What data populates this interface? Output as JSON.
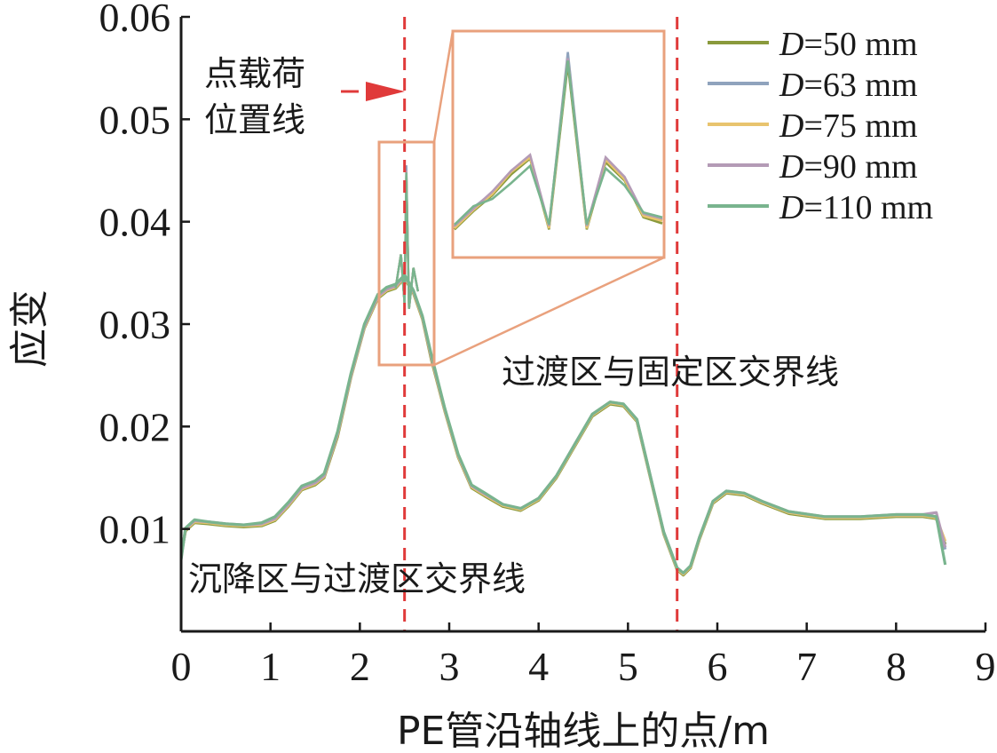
{
  "chart_data": {
    "type": "line",
    "xlabel": "PE管沿轴线上的点/m",
    "ylabel": "应变",
    "xlim": [
      0,
      9
    ],
    "ylim": [
      0,
      0.06
    ],
    "xticks": [
      0,
      1,
      2,
      3,
      4,
      5,
      6,
      7,
      8,
      9
    ],
    "yticks": [
      0.01,
      0.02,
      0.03,
      0.04,
      0.05,
      0.06
    ],
    "grid": false,
    "legend_position": "top-right",
    "series": [
      {
        "name": "D=50 mm",
        "legend_var": "D",
        "legend_rest": "=50 mm",
        "color": "#8a9a3c",
        "x": [
          0,
          0.05,
          0.15,
          0.3,
          0.5,
          0.7,
          0.9,
          1.05,
          1.2,
          1.35,
          1.5,
          1.6,
          1.75,
          1.9,
          2.05,
          2.2,
          2.3,
          2.4,
          2.5,
          2.6,
          2.7,
          2.8,
          2.95,
          3.1,
          3.25,
          3.4,
          3.6,
          3.8,
          4.0,
          4.2,
          4.4,
          4.6,
          4.8,
          4.95,
          5.1,
          5.25,
          5.4,
          5.55,
          5.62,
          5.7,
          5.8,
          5.95,
          6.1,
          6.3,
          6.5,
          6.8,
          7.2,
          7.6,
          8.0,
          8.3,
          8.45,
          8.55
        ],
        "y": [
          0.0075,
          0.0098,
          0.0106,
          0.0105,
          0.0103,
          0.0102,
          0.0103,
          0.0108,
          0.0122,
          0.0138,
          0.0143,
          0.015,
          0.019,
          0.0248,
          0.0296,
          0.0325,
          0.0332,
          0.0335,
          0.0345,
          0.033,
          0.0305,
          0.0265,
          0.0215,
          0.017,
          0.014,
          0.0132,
          0.0122,
          0.0118,
          0.0128,
          0.015,
          0.018,
          0.021,
          0.0222,
          0.022,
          0.0205,
          0.015,
          0.0095,
          0.006,
          0.0055,
          0.0062,
          0.009,
          0.0125,
          0.0135,
          0.0133,
          0.0125,
          0.0115,
          0.011,
          0.011,
          0.0112,
          0.0112,
          0.011,
          0.0085
        ]
      },
      {
        "name": "D=63 mm",
        "legend_var": "D",
        "legend_rest": "=63 mm",
        "color": "#8fa3bd",
        "x": [
          0,
          0.05,
          0.15,
          0.3,
          0.5,
          0.7,
          0.9,
          1.05,
          1.2,
          1.35,
          1.5,
          1.6,
          1.75,
          1.9,
          2.05,
          2.2,
          2.3,
          2.4,
          2.5,
          2.6,
          2.7,
          2.8,
          2.95,
          3.1,
          3.25,
          3.4,
          3.6,
          3.8,
          4.0,
          4.2,
          4.4,
          4.6,
          4.8,
          4.95,
          5.1,
          5.25,
          5.4,
          5.55,
          5.62,
          5.7,
          5.8,
          5.95,
          6.1,
          6.3,
          6.5,
          6.8,
          7.2,
          7.6,
          8.0,
          8.3,
          8.45,
          8.55
        ],
        "y": [
          0.0072,
          0.01,
          0.0108,
          0.0106,
          0.0104,
          0.0103,
          0.0104,
          0.011,
          0.0124,
          0.014,
          0.0145,
          0.0152,
          0.0193,
          0.025,
          0.0298,
          0.0327,
          0.0334,
          0.0337,
          0.0347,
          0.0332,
          0.0307,
          0.0268,
          0.0217,
          0.0172,
          0.0142,
          0.0134,
          0.0123,
          0.0119,
          0.0129,
          0.0151,
          0.0181,
          0.0211,
          0.0223,
          0.0221,
          0.0206,
          0.0151,
          0.0096,
          0.0061,
          0.0056,
          0.0063,
          0.0091,
          0.0126,
          0.0136,
          0.0134,
          0.0126,
          0.0116,
          0.0111,
          0.0111,
          0.0113,
          0.0113,
          0.0111,
          0.008
        ]
      },
      {
        "name": "D=75 mm",
        "legend_var": "D",
        "legend_rest": "=75 mm",
        "color": "#e8c46e",
        "x": [
          0,
          0.05,
          0.15,
          0.3,
          0.5,
          0.7,
          0.9,
          1.05,
          1.2,
          1.35,
          1.5,
          1.6,
          1.75,
          1.9,
          2.05,
          2.2,
          2.3,
          2.4,
          2.5,
          2.6,
          2.7,
          2.8,
          2.95,
          3.1,
          3.25,
          3.4,
          3.6,
          3.8,
          4.0,
          4.2,
          4.4,
          4.6,
          4.8,
          4.95,
          5.1,
          5.25,
          5.4,
          5.55,
          5.62,
          5.7,
          5.8,
          5.95,
          6.1,
          6.3,
          6.5,
          6.8,
          7.2,
          7.6,
          8.0,
          8.3,
          8.45,
          8.55
        ],
        "y": [
          0.0074,
          0.0099,
          0.0107,
          0.0106,
          0.0104,
          0.0103,
          0.0104,
          0.0109,
          0.0123,
          0.0139,
          0.0144,
          0.0151,
          0.0192,
          0.0249,
          0.0297,
          0.0326,
          0.0333,
          0.0336,
          0.0346,
          0.0331,
          0.0306,
          0.0267,
          0.0216,
          0.0171,
          0.0141,
          0.0133,
          0.0123,
          0.0119,
          0.0129,
          0.0151,
          0.0181,
          0.0211,
          0.0223,
          0.0221,
          0.0206,
          0.0151,
          0.0096,
          0.0061,
          0.0056,
          0.0063,
          0.0091,
          0.0126,
          0.0136,
          0.0134,
          0.0126,
          0.0116,
          0.0111,
          0.0111,
          0.0113,
          0.0113,
          0.0111,
          0.0088
        ]
      },
      {
        "name": "D=90 mm",
        "legend_var": "D",
        "legend_rest": "=90 mm",
        "color": "#b49bb6",
        "x": [
          0,
          0.05,
          0.15,
          0.3,
          0.5,
          0.7,
          0.9,
          1.05,
          1.2,
          1.35,
          1.5,
          1.6,
          1.75,
          1.9,
          2.05,
          2.2,
          2.3,
          2.4,
          2.5,
          2.6,
          2.7,
          2.8,
          2.95,
          3.1,
          3.25,
          3.4,
          3.6,
          3.8,
          4.0,
          4.2,
          4.4,
          4.6,
          4.8,
          4.95,
          5.1,
          5.25,
          5.4,
          5.55,
          5.62,
          5.7,
          5.8,
          5.95,
          6.1,
          6.3,
          6.5,
          6.8,
          7.2,
          7.6,
          8.0,
          8.3,
          8.45,
          8.55
        ],
        "y": [
          0.0073,
          0.01,
          0.0108,
          0.0107,
          0.0105,
          0.0104,
          0.0105,
          0.011,
          0.0124,
          0.014,
          0.0145,
          0.0152,
          0.0193,
          0.025,
          0.0298,
          0.0327,
          0.0334,
          0.0337,
          0.0347,
          0.0332,
          0.0307,
          0.0268,
          0.0217,
          0.0172,
          0.0142,
          0.0134,
          0.0124,
          0.012,
          0.013,
          0.0152,
          0.0182,
          0.0212,
          0.0224,
          0.0222,
          0.0207,
          0.0152,
          0.0097,
          0.0062,
          0.0057,
          0.0064,
          0.0092,
          0.0127,
          0.0137,
          0.0135,
          0.0127,
          0.0117,
          0.0112,
          0.0112,
          0.0114,
          0.0114,
          0.0116,
          0.0082
        ]
      },
      {
        "name": "D=110 mm",
        "legend_var": "D",
        "legend_rest": "=110 mm",
        "color": "#79b48e",
        "x": [
          0,
          0.05,
          0.15,
          0.3,
          0.5,
          0.7,
          0.9,
          1.05,
          1.2,
          1.35,
          1.5,
          1.6,
          1.75,
          1.9,
          2.05,
          2.2,
          2.3,
          2.4,
          2.5,
          2.6,
          2.7,
          2.8,
          2.95,
          3.1,
          3.25,
          3.4,
          3.6,
          3.8,
          4.0,
          4.2,
          4.4,
          4.6,
          4.8,
          4.95,
          5.1,
          5.25,
          5.4,
          5.55,
          5.62,
          5.7,
          5.8,
          5.95,
          6.1,
          6.3,
          6.5,
          6.8,
          7.2,
          7.6,
          8.0,
          8.3,
          8.45,
          8.55
        ],
        "y": [
          0.007,
          0.0101,
          0.0109,
          0.0107,
          0.0105,
          0.0104,
          0.0106,
          0.0112,
          0.0126,
          0.0142,
          0.0147,
          0.0154,
          0.0195,
          0.0252,
          0.03,
          0.0329,
          0.0336,
          0.0339,
          0.0348,
          0.0333,
          0.0308,
          0.027,
          0.0218,
          0.0173,
          0.0143,
          0.0135,
          0.0124,
          0.012,
          0.013,
          0.0152,
          0.0182,
          0.0212,
          0.0224,
          0.0222,
          0.0207,
          0.0152,
          0.0097,
          0.0062,
          0.0057,
          0.0064,
          0.0092,
          0.0127,
          0.0137,
          0.0135,
          0.0127,
          0.0117,
          0.0112,
          0.0112,
          0.0114,
          0.0114,
          0.0112,
          0.0065
        ]
      }
    ],
    "reference_lines": [
      {
        "x": 2.5,
        "color": "#e03a3a",
        "style": "dashed"
      },
      {
        "x": 5.55,
        "color": "#e03a3a",
        "style": "dashed"
      }
    ],
    "annotations": {
      "load_line_1": "点载荷",
      "load_line_2": "位置线",
      "transition_fixed": "过渡区与固定区交界线",
      "settlement_transition": "沉降区与过渡区交界线"
    },
    "inset": {
      "zoom_region_x": [
        2.22,
        2.83
      ],
      "zoom_region_y": [
        0.026,
        0.0475
      ],
      "border_color": "#e9a17d",
      "peak_values": {
        "D=50 mm": 0.0445,
        "D=63 mm": 0.0455,
        "D=75 mm": 0.045,
        "D=90 mm": 0.045,
        "D=110 mm": 0.0448
      },
      "inset_profiles": [
        [
          0.031,
          0.0325,
          0.0338,
          0.0355,
          0.0368,
          0.031,
          0.0445,
          0.031,
          0.0365,
          0.035,
          0.032,
          0.0315
        ],
        [
          0.0312,
          0.0328,
          0.034,
          0.0358,
          0.037,
          0.0312,
          0.0455,
          0.0312,
          0.0368,
          0.0352,
          0.0322,
          0.0318
        ],
        [
          0.0311,
          0.0326,
          0.0339,
          0.0357,
          0.0369,
          0.0311,
          0.045,
          0.0311,
          0.0367,
          0.0351,
          0.0321,
          0.0317
        ],
        [
          0.0313,
          0.0327,
          0.0341,
          0.0358,
          0.0371,
          0.0313,
          0.045,
          0.0313,
          0.0369,
          0.0353,
          0.0323,
          0.0319
        ],
        [
          0.0314,
          0.0329,
          0.0335,
          0.0348,
          0.0362,
          0.0314,
          0.0448,
          0.0314,
          0.036,
          0.0346,
          0.0324,
          0.032
        ]
      ]
    }
  }
}
